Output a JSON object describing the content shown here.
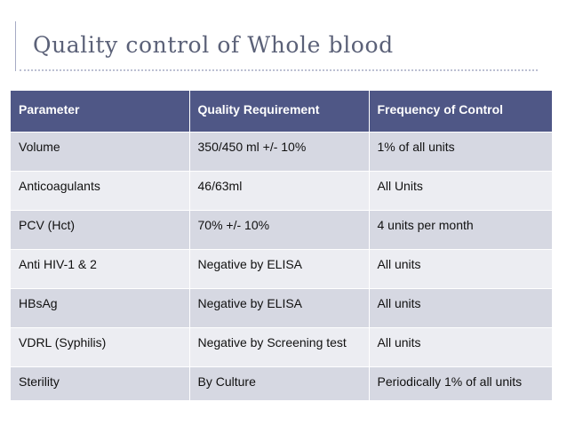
{
  "slide": {
    "title": "Quality control of Whole blood"
  },
  "table": {
    "headers": [
      "Parameter",
      "Quality Requirement",
      "Frequency of Control"
    ],
    "rows": [
      [
        "Volume",
        "350/450 ml +/- 10%",
        "1% of all units"
      ],
      [
        "Anticoagulants",
        "46/63ml",
        "All Units"
      ],
      [
        "PCV (Hct)",
        "70% +/- 10%",
        "4 units per month"
      ],
      [
        "Anti HIV-1 & 2",
        "Negative by ELISA",
        "All units"
      ],
      [
        "HBsAg",
        "Negative by ELISA",
        "All units"
      ],
      [
        "VDRL (Syphilis)",
        "Negative by Screening test",
        "All units"
      ],
      [
        "Sterility",
        "By Culture",
        "Periodically 1% of all units"
      ]
    ]
  },
  "colors": {
    "header_background": "#4f5786",
    "row_odd": "#d6d8e2",
    "row_even": "#ecedf2",
    "title": "#5b6178"
  }
}
